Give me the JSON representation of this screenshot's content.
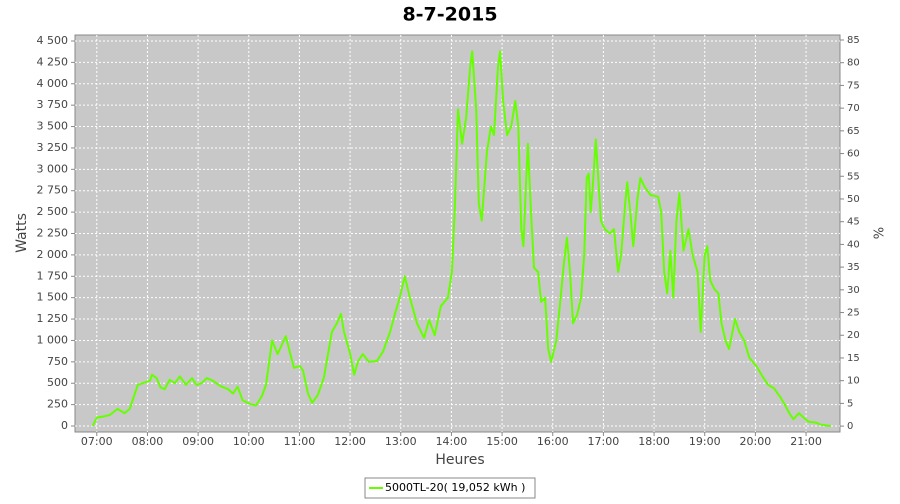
{
  "chart_data": {
    "type": "line",
    "title": "8-7-2015",
    "ylabel": "Watts",
    "y2label": "%",
    "xlabel": "Heures",
    "x": [
      6.92,
      7.0,
      7.12,
      7.26,
      7.41,
      7.55,
      7.65,
      7.81,
      7.95,
      8.05,
      8.09,
      8.18,
      8.26,
      8.34,
      8.44,
      8.54,
      8.64,
      8.76,
      8.88,
      8.97,
      9.07,
      9.17,
      9.29,
      9.43,
      9.59,
      9.69,
      9.78,
      9.88,
      10.02,
      10.14,
      10.26,
      10.34,
      10.46,
      10.57,
      10.73,
      10.89,
      11.01,
      11.07,
      11.17,
      11.25,
      11.36,
      11.48,
      11.64,
      11.74,
      11.82,
      11.88,
      12.0,
      12.08,
      12.16,
      12.25,
      12.37,
      12.53,
      12.65,
      12.79,
      12.88,
      12.98,
      13.08,
      13.18,
      13.32,
      13.46,
      13.56,
      13.67,
      13.79,
      13.93,
      14.01,
      14.07,
      14.13,
      14.21,
      14.29,
      14.37,
      14.41,
      14.49,
      14.54,
      14.6,
      14.7,
      14.78,
      14.84,
      14.92,
      14.96,
      15.02,
      15.1,
      15.18,
      15.26,
      15.32,
      15.38,
      15.42,
      15.47,
      15.51,
      15.57,
      15.63,
      15.71,
      15.77,
      15.85,
      15.91,
      15.97,
      16.07,
      16.14,
      16.22,
      16.28,
      16.34,
      16.4,
      16.48,
      16.56,
      16.62,
      16.67,
      16.71,
      16.75,
      16.79,
      16.85,
      16.91,
      16.95,
      17.03,
      17.13,
      17.21,
      17.29,
      17.35,
      17.43,
      17.47,
      17.53,
      17.59,
      17.67,
      17.73,
      17.81,
      17.93,
      18.08,
      18.14,
      18.2,
      18.26,
      18.32,
      18.38,
      18.44,
      18.5,
      18.58,
      18.68,
      18.76,
      18.86,
      18.92,
      19.0,
      19.05,
      19.11,
      19.19,
      19.27,
      19.33,
      19.41,
      19.48,
      19.6,
      19.68,
      19.78,
      19.88,
      20.02,
      20.15,
      20.25,
      20.37,
      20.49,
      20.58,
      20.67,
      20.75,
      20.86,
      20.95,
      21.05,
      21.2,
      21.27,
      21.37,
      21.49
    ],
    "series": [
      {
        "name": "5000TL-20( 19,052 kWh )",
        "color": "#66ff00",
        "values": [
          0,
          100,
          110,
          130,
          200,
          150,
          200,
          480,
          510,
          530,
          600,
          560,
          450,
          430,
          540,
          500,
          580,
          480,
          560,
          480,
          500,
          560,
          530,
          470,
          430,
          380,
          460,
          300,
          260,
          240,
          350,
          480,
          1000,
          840,
          1050,
          680,
          700,
          650,
          380,
          270,
          360,
          560,
          1100,
          1200,
          1310,
          1100,
          850,
          600,
          760,
          840,
          750,
          760,
          870,
          1100,
          1300,
          1500,
          1750,
          1500,
          1200,
          1030,
          1240,
          1060,
          1400,
          1500,
          1800,
          2600,
          3700,
          3300,
          3600,
          4200,
          4380,
          3700,
          2600,
          2400,
          3200,
          3500,
          3400,
          4200,
          4380,
          3800,
          3400,
          3500,
          3800,
          3500,
          2300,
          2100,
          2800,
          3300,
          2500,
          1850,
          1800,
          1450,
          1500,
          900,
          750,
          1000,
          1400,
          1900,
          2200,
          1800,
          1200,
          1300,
          1500,
          2000,
          2900,
          2950,
          2500,
          2800,
          3350,
          2800,
          2400,
          2300,
          2250,
          2300,
          1800,
          2000,
          2600,
          2850,
          2500,
          2100,
          2650,
          2900,
          2800,
          2700,
          2680,
          2500,
          1800,
          1550,
          2050,
          1500,
          2400,
          2720,
          2050,
          2300,
          2000,
          1800,
          1100,
          2000,
          2100,
          1700,
          1600,
          1550,
          1200,
          1000,
          900,
          1250,
          1100,
          1000,
          800,
          700,
          570,
          480,
          440,
          340,
          250,
          150,
          80,
          150,
          100,
          50,
          40,
          20,
          10,
          0
        ]
      }
    ],
    "xlim": [
      6.57,
      21.67
    ],
    "xticks": [
      {
        "value": 7,
        "label": "07:00"
      },
      {
        "value": 8,
        "label": "08:00"
      },
      {
        "value": 9,
        "label": "09:00"
      },
      {
        "value": 10,
        "label": "10:00"
      },
      {
        "value": 11,
        "label": "11:00"
      },
      {
        "value": 12,
        "label": "12:00"
      },
      {
        "value": 13,
        "label": "13:00"
      },
      {
        "value": 14,
        "label": "14:00"
      },
      {
        "value": 15,
        "label": "15:00"
      },
      {
        "value": 16,
        "label": "16:00"
      },
      {
        "value": 17,
        "label": "17:00"
      },
      {
        "value": 18,
        "label": "18:00"
      },
      {
        "value": 19,
        "label": "19:00"
      },
      {
        "value": 20,
        "label": "20:00"
      },
      {
        "value": 21,
        "label": "21:00"
      }
    ],
    "ylim": [
      -70,
      4570
    ],
    "yticks": [
      0,
      250,
      500,
      750,
      {
        "value": 1000,
        "label": "1 000"
      },
      {
        "value": 1250,
        "label": "1 250"
      },
      {
        "value": 1500,
        "label": "1 500"
      },
      {
        "value": 1750,
        "label": "1 750"
      },
      {
        "value": 2000,
        "label": "2 000"
      },
      {
        "value": 2250,
        "label": "2 250"
      },
      {
        "value": 2500,
        "label": "2 500"
      },
      {
        "value": 2750,
        "label": "2 750"
      },
      {
        "value": 3000,
        "label": "3 000"
      },
      {
        "value": 3250,
        "label": "3 250"
      },
      {
        "value": 3500,
        "label": "3 500"
      },
      {
        "value": 3750,
        "label": "3 750"
      },
      {
        "value": 4000,
        "label": "4 000"
      },
      {
        "value": 4250,
        "label": "4 250"
      },
      {
        "value": 4500,
        "label": "4 500"
      }
    ],
    "y2lim": [
      -1.3,
      86.1
    ],
    "y2ticks": [
      0,
      5,
      10,
      15,
      20,
      25,
      30,
      35,
      40,
      45,
      50,
      55,
      60,
      65,
      70,
      75,
      80,
      85
    ],
    "grid": true,
    "legend": "bottom"
  }
}
